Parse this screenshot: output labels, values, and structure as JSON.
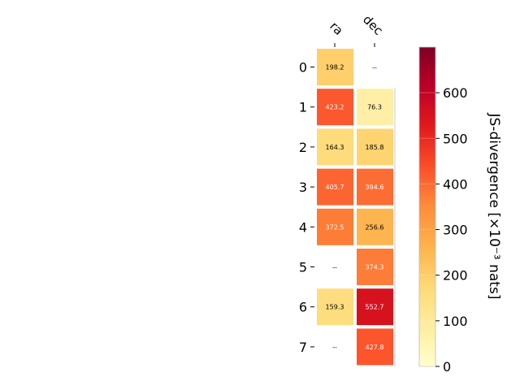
{
  "chart_data": {
    "type": "heatmap",
    "columns": [
      "ra",
      "dec"
    ],
    "rows": [
      "0",
      "1",
      "2",
      "3",
      "4",
      "5",
      "6",
      "7"
    ],
    "values": [
      [
        198.2,
        null
      ],
      [
        423.2,
        76.3
      ],
      [
        164.3,
        185.8
      ],
      [
        405.7,
        394.6
      ],
      [
        372.5,
        256.6
      ],
      [
        null,
        374.3
      ],
      [
        159.3,
        552.7
      ],
      [
        null,
        427.8
      ]
    ],
    "missing_label": "--",
    "colorbar": {
      "label": "JS-divergence [×10⁻³ nats]",
      "min": 0,
      "max": 700,
      "ticks": [
        "0",
        "100",
        "200",
        "300",
        "400",
        "500",
        "600"
      ],
      "colormap": "YlOrRd"
    }
  }
}
